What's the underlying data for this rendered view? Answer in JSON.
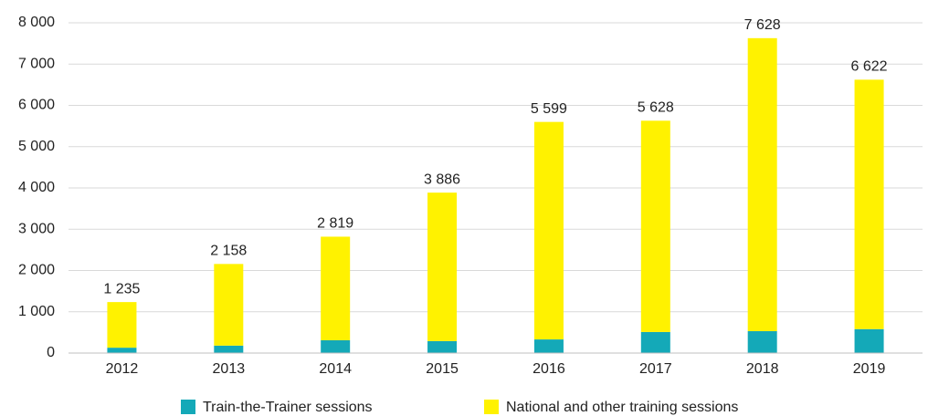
{
  "chart_data": {
    "type": "stacked_bar",
    "categories": [
      "2012",
      "2013",
      "2014",
      "2015",
      "2016",
      "2017",
      "2018",
      "2019"
    ],
    "series": [
      {
        "name": "Train-the-Trainer sessions",
        "color": "#14a9b8",
        "values": [
          130,
          180,
          310,
          290,
          330,
          510,
          530,
          580
        ]
      },
      {
        "name": "National and other training sessions",
        "color": "#fff200",
        "values": [
          1105,
          1978,
          2509,
          3596,
          5269,
          5118,
          7098,
          6042
        ]
      }
    ],
    "totals": [
      1235,
      2158,
      2819,
      3886,
      5599,
      5628,
      7628,
      6622
    ],
    "total_labels": [
      "1 235",
      "2 158",
      "2 819",
      "3 886",
      "5 599",
      "5 628",
      "7 628",
      "6 622"
    ],
    "ylim": [
      0,
      8000
    ],
    "yticks": [
      0,
      {
        "value": 1000,
        "label": "1 000"
      },
      {
        "value": 2000,
        "label": "2 000"
      },
      {
        "value": 3000,
        "label": "3 000"
      },
      {
        "value": 4000,
        "label": "4 000"
      },
      {
        "value": 5000,
        "label": "5 000"
      },
      {
        "value": 6000,
        "label": "6 000"
      },
      {
        "value": 7000,
        "label": "7 000"
      },
      {
        "value": 8000,
        "label": "8 000"
      }
    ],
    "grid": true,
    "legend": "bottom"
  }
}
